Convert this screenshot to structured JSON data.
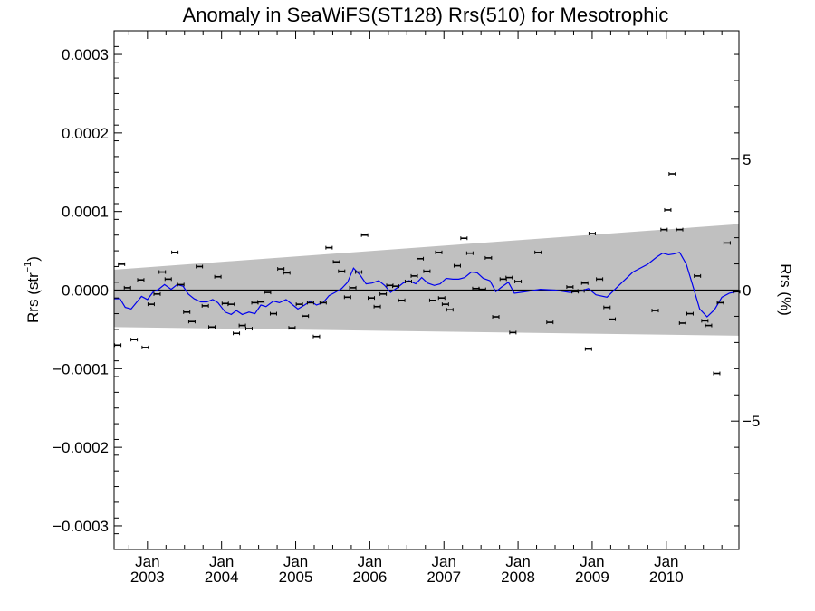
{
  "chart_data": {
    "type": "scatter",
    "title": "Anomaly in SeaWiFS(ST128) Rrs(510) for Mesotrophic",
    "ylabel": "Rrs (str",
    "ylabel_sup": "−1",
    "ylabel_close": ")",
    "y2label": "Rrs (%)",
    "xlim": [
      2002.55,
      2010.98
    ],
    "ylim": [
      -0.00033,
      0.00033
    ],
    "y2lim": [
      -9.9,
      9.9
    ],
    "yticks": [
      {
        "v": 0.0003,
        "label": "0.0003"
      },
      {
        "v": 0.0002,
        "label": "0.0002"
      },
      {
        "v": 0.0001,
        "label": "0.0001"
      },
      {
        "v": 0,
        "label": "0.0000"
      },
      {
        "v": -0.0001,
        "label": "−0.0001"
      },
      {
        "v": -0.0002,
        "label": "−0.0002"
      },
      {
        "v": -0.0003,
        "label": "−0.0003"
      }
    ],
    "y2ticks": [
      {
        "v": 5,
        "label": "5"
      },
      {
        "v": 0,
        "label": "0"
      },
      {
        "v": -5,
        "label": "−5"
      }
    ],
    "xticks": [
      {
        "v": 2003.0,
        "month": "Jan",
        "year": "2003"
      },
      {
        "v": 2004.0,
        "month": "Jan",
        "year": "2004"
      },
      {
        "v": 2005.0,
        "month": "Jan",
        "year": "2005"
      },
      {
        "v": 2006.0,
        "month": "Jan",
        "year": "2006"
      },
      {
        "v": 2007.0,
        "month": "Jan",
        "year": "2007"
      },
      {
        "v": 2008.0,
        "month": "Jan",
        "year": "2008"
      },
      {
        "v": 2009.0,
        "month": "Jan",
        "year": "2009"
      },
      {
        "v": 2010.0,
        "month": "Jan",
        "year": "2010"
      }
    ],
    "envelope": {
      "x": [
        2002.55,
        2010.98
      ],
      "upper": [
        2.6e-05,
        8.4e-05
      ],
      "lower": [
        -4.7e-05,
        -5.8e-05
      ],
      "color": "#c0c0c0"
    },
    "points": {
      "color": "#000000",
      "x": [
        2002.6,
        2002.65,
        2002.73,
        2002.82,
        2002.91,
        2002.97,
        2003.05,
        2003.13,
        2003.2,
        2003.28,
        2003.37,
        2003.45,
        2003.53,
        2003.6,
        2003.7,
        2003.78,
        2003.87,
        2003.95,
        2004.05,
        2004.13,
        2004.2,
        2004.28,
        2004.37,
        2004.45,
        2004.53,
        2004.62,
        2004.7,
        2004.8,
        2004.88,
        2004.95,
        2005.05,
        2005.13,
        2005.2,
        2005.28,
        2005.37,
        2005.45,
        2005.55,
        2005.62,
        2005.7,
        2005.77,
        2005.85,
        2005.93,
        2006.02,
        2006.1,
        2006.18,
        2006.27,
        2006.35,
        2006.43,
        2006.52,
        2006.6,
        2006.68,
        2006.77,
        2006.85,
        2006.93,
        2006.97,
        2007.02,
        2007.08,
        2007.18,
        2007.27,
        2007.35,
        2007.43,
        2007.52,
        2007.6,
        2007.7,
        2007.8,
        2007.88,
        2007.93,
        2008.0,
        2008.27,
        2008.43,
        2008.7,
        2008.77,
        2008.85,
        2008.9,
        2008.95,
        2009.0,
        2009.1,
        2009.2,
        2009.27,
        2009.85,
        2009.97,
        2010.02,
        2010.08,
        2010.18,
        2010.22,
        2010.32,
        2010.42,
        2010.52,
        2010.57,
        2010.68,
        2010.73,
        2010.82,
        2010.95
      ],
      "y": [
        -7e-05,
        3.3e-05,
        3e-06,
        -6.3e-05,
        1.3e-05,
        -7.3e-05,
        -1.8e-05,
        -5e-06,
        2.3e-05,
        1.4e-05,
        4.8e-05,
        7e-06,
        -2.8e-05,
        -4e-05,
        3e-05,
        -2e-05,
        -4.7e-05,
        1.7e-05,
        -1.7e-05,
        -1.8e-05,
        -5.5e-05,
        -4.5e-05,
        -4.9e-05,
        -1.6e-05,
        -1.5e-05,
        -3e-06,
        -3e-05,
        2.7e-05,
        2.2e-05,
        -4.8e-05,
        -1.8e-05,
        -3.3e-05,
        -1.6e-05,
        -5.9e-05,
        -1.6e-05,
        5.4e-05,
        3.6e-05,
        2.4e-05,
        -9e-06,
        3e-06,
        2.3e-05,
        7e-05,
        -1e-05,
        -2.1e-05,
        -5e-06,
        6e-06,
        5e-06,
        -1.3e-05,
        1.1e-05,
        1.8e-05,
        4e-05,
        2.4e-05,
        -1.3e-05,
        4.8e-05,
        -1e-05,
        -1.8e-05,
        -2.5e-05,
        3.1e-05,
        6.6e-05,
        4.7e-05,
        2e-06,
        1e-06,
        4.1e-05,
        -3.4e-05,
        1.4e-05,
        1.6e-05,
        -5.4e-05,
        1.1e-05,
        4.8e-05,
        -4.1e-05,
        4e-06,
        -2e-06,
        -1e-06,
        9e-06,
        -7.5e-05,
        7.2e-05,
        1.4e-05,
        -2.2e-05,
        -3.7e-05,
        -2.6e-05,
        7.7e-05,
        0.000102,
        0.000148,
        7.7e-05,
        -4.2e-05,
        -3e-05,
        1.8e-05,
        -3.9e-05,
        -4.5e-05,
        -0.000106,
        -1.6e-05,
        6e-05,
        -2e-06
      ]
    },
    "line": {
      "color": "#0000ee",
      "x": [
        2002.55,
        2002.63,
        2002.7,
        2002.78,
        2002.85,
        2002.92,
        2003.0,
        2003.08,
        2003.15,
        2003.23,
        2003.32,
        2003.4,
        2003.48,
        2003.55,
        2003.63,
        2003.72,
        2003.8,
        2003.88,
        2003.95,
        2004.05,
        2004.13,
        2004.2,
        2004.28,
        2004.37,
        2004.45,
        2004.53,
        2004.6,
        2004.7,
        2004.78,
        2004.87,
        2004.95,
        2005.03,
        2005.12,
        2005.2,
        2005.28,
        2005.37,
        2005.45,
        2005.53,
        2005.62,
        2005.7,
        2005.78,
        2005.87,
        2005.95,
        2006.03,
        2006.12,
        2006.2,
        2006.28,
        2006.37,
        2006.45,
        2006.53,
        2006.62,
        2006.7,
        2006.78,
        2006.87,
        2006.95,
        2007.03,
        2007.12,
        2007.2,
        2007.28,
        2007.37,
        2007.45,
        2007.53,
        2007.62,
        2007.7,
        2007.78,
        2007.87,
        2007.95,
        2008.1,
        2008.3,
        2008.5,
        2008.7,
        2008.85,
        2008.95,
        2009.05,
        2009.2,
        2009.35,
        2009.55,
        2009.75,
        2009.87,
        2009.95,
        2010.03,
        2010.1,
        2010.18,
        2010.27,
        2010.35,
        2010.45,
        2010.55,
        2010.65,
        2010.75,
        2010.85,
        2010.95
      ],
      "y": [
        -1.1e-05,
        -1.1e-05,
        -2.2e-05,
        -2.4e-05,
        -1.6e-05,
        -8e-06,
        -1.2e-05,
        -2e-06,
        1e-06,
        7e-06,
        1e-06,
        7e-06,
        5e-06,
        -5e-06,
        -1.1e-05,
        -1.5e-05,
        -1.5e-05,
        -1.2e-05,
        -1.6e-05,
        -2.8e-05,
        -3.1e-05,
        -2.6e-05,
        -3.1e-05,
        -2.8e-05,
        -3e-05,
        -1.9e-05,
        -2.1e-05,
        -1.4e-05,
        -1.6e-05,
        -1.2e-05,
        -1.8e-05,
        -2.4e-05,
        -1.9e-05,
        -1.4e-05,
        -1.9e-05,
        -1.6e-05,
        -7e-06,
        -3e-06,
        2e-06,
        1e-05,
        2.8e-05,
        1.9e-05,
        8e-06,
        9e-06,
        1.2e-05,
        6e-06,
        -3e-06,
        3e-06,
        9e-06,
        1.2e-05,
        8e-06,
        1.6e-05,
        9e-06,
        6e-06,
        8e-06,
        1.5e-05,
        1.4e-05,
        1.4e-05,
        1.6e-05,
        2.3e-05,
        2.2e-05,
        1.5e-05,
        1.2e-05,
        -2e-06,
        4e-06,
        1e-05,
        -4e-06,
        -2e-06,
        1e-06,
        0.0,
        -3e-06,
        -1e-06,
        2e-06,
        -6e-06,
        -9e-06,
        5e-06,
        2.3e-05,
        3.3e-05,
        4.2e-05,
        4.7e-05,
        4.5e-05,
        4.6e-05,
        4.8e-05,
        3.3e-05,
        8e-06,
        -2.4e-05,
        -3.4e-05,
        -2.5e-05,
        -9e-06,
        -4e-06,
        -2e-06
      ]
    },
    "zero_line": 0,
    "grid": false,
    "legend": "none"
  }
}
